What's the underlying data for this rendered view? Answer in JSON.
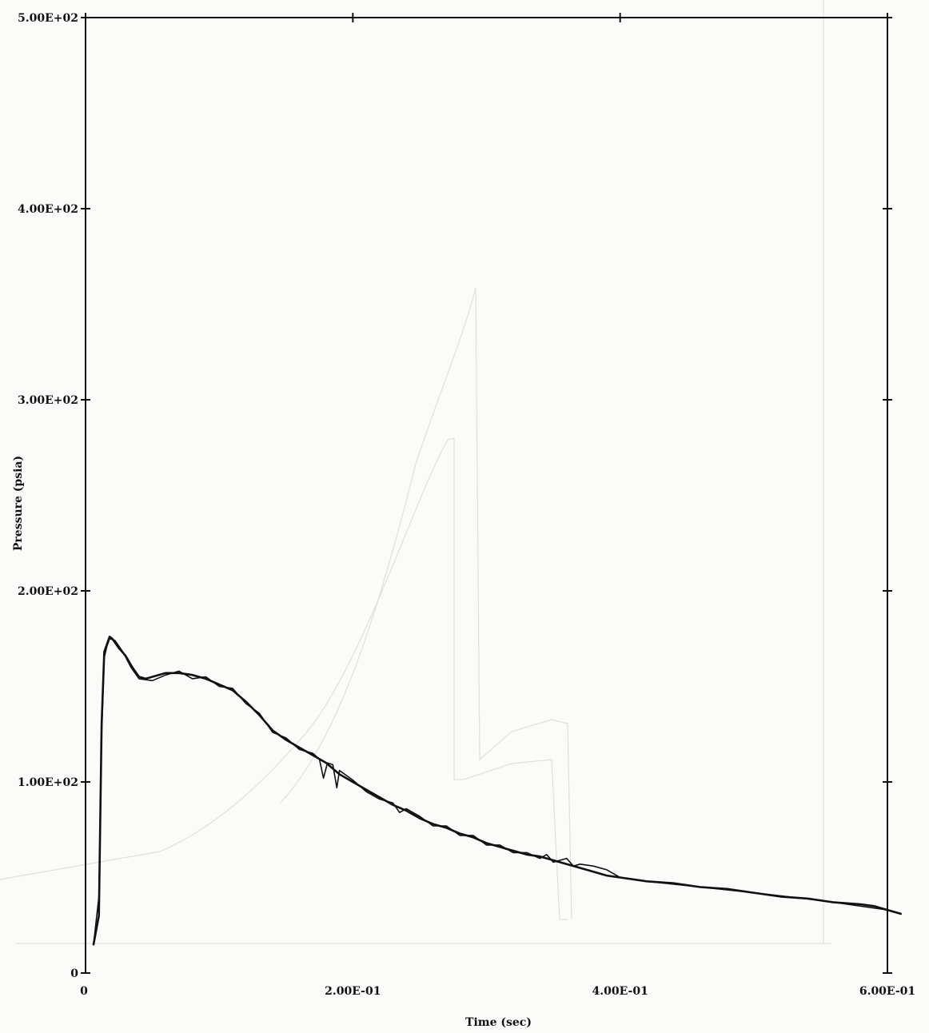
{
  "chart_data": {
    "type": "line",
    "title": "",
    "xlabel": "Time (sec)",
    "ylabel": "Pressure (psia)",
    "xlim": [
      0,
      0.6
    ],
    "ylim": [
      0,
      500
    ],
    "x_ticks": [
      0,
      0.2,
      0.4,
      0.6
    ],
    "x_tick_labels": [
      "0",
      "2.00E-01",
      "4.00E-01",
      "6.00E-01"
    ],
    "y_ticks": [
      0,
      100,
      200,
      300,
      400,
      500
    ],
    "y_tick_labels": [
      "0",
      "1.00E+02",
      "2.00E+02",
      "3.00E+02",
      "4.00E+02",
      "5.00E+02"
    ],
    "grid": false,
    "line_color": "#111111",
    "series": [
      {
        "points": [
          [
            0.006,
            15
          ],
          [
            0.01,
            30
          ],
          [
            0.012,
            130
          ],
          [
            0.014,
            168
          ],
          [
            0.016,
            172
          ],
          [
            0.018,
            176
          ],
          [
            0.02,
            175
          ],
          [
            0.025,
            170
          ],
          [
            0.03,
            166
          ],
          [
            0.035,
            160
          ],
          [
            0.04,
            155
          ],
          [
            0.045,
            154
          ],
          [
            0.05,
            155
          ],
          [
            0.06,
            157
          ],
          [
            0.07,
            157
          ],
          [
            0.08,
            156
          ],
          [
            0.09,
            154
          ],
          [
            0.1,
            151
          ],
          [
            0.11,
            148
          ],
          [
            0.12,
            142
          ],
          [
            0.13,
            135
          ],
          [
            0.14,
            127
          ],
          [
            0.15,
            122
          ],
          [
            0.16,
            118
          ],
          [
            0.17,
            114
          ],
          [
            0.18,
            110
          ],
          [
            0.19,
            104
          ],
          [
            0.2,
            100
          ],
          [
            0.21,
            96
          ],
          [
            0.22,
            92
          ],
          [
            0.23,
            88
          ],
          [
            0.24,
            85
          ],
          [
            0.25,
            81
          ],
          [
            0.26,
            78
          ],
          [
            0.27,
            76
          ],
          [
            0.28,
            73
          ],
          [
            0.29,
            71
          ],
          [
            0.3,
            68
          ],
          [
            0.31,
            66
          ],
          [
            0.32,
            64
          ],
          [
            0.33,
            62
          ],
          [
            0.34,
            61
          ],
          [
            0.35,
            59
          ],
          [
            0.36,
            57
          ],
          [
            0.37,
            55
          ],
          [
            0.38,
            53
          ],
          [
            0.39,
            51
          ],
          [
            0.4,
            50
          ],
          [
            0.42,
            48
          ],
          [
            0.44,
            47
          ],
          [
            0.46,
            45
          ],
          [
            0.48,
            44
          ],
          [
            0.5,
            42
          ],
          [
            0.52,
            40
          ],
          [
            0.54,
            39
          ],
          [
            0.56,
            37
          ],
          [
            0.58,
            36
          ],
          [
            0.59,
            35
          ],
          [
            0.6,
            33
          ],
          [
            0.61,
            31
          ]
        ]
      },
      {
        "points": [
          [
            0.006,
            15
          ],
          [
            0.01,
            40
          ],
          [
            0.012,
            125
          ],
          [
            0.014,
            165
          ],
          [
            0.016,
            171
          ],
          [
            0.018,
            175
          ],
          [
            0.022,
            174
          ],
          [
            0.028,
            168
          ],
          [
            0.034,
            160
          ],
          [
            0.04,
            154
          ],
          [
            0.05,
            153
          ],
          [
            0.06,
            156
          ],
          [
            0.07,
            158
          ],
          [
            0.08,
            154
          ],
          [
            0.09,
            155
          ],
          [
            0.1,
            150
          ],
          [
            0.11,
            149
          ],
          [
            0.12,
            141
          ],
          [
            0.13,
            136
          ],
          [
            0.14,
            126
          ],
          [
            0.15,
            123
          ],
          [
            0.16,
            117
          ],
          [
            0.17,
            115
          ],
          [
            0.175,
            112
          ],
          [
            0.178,
            102
          ],
          [
            0.181,
            110
          ],
          [
            0.185,
            109
          ],
          [
            0.188,
            97
          ],
          [
            0.19,
            106
          ],
          [
            0.2,
            101
          ],
          [
            0.21,
            95
          ],
          [
            0.22,
            91
          ],
          [
            0.23,
            89
          ],
          [
            0.235,
            84
          ],
          [
            0.24,
            86
          ],
          [
            0.25,
            82
          ],
          [
            0.26,
            77
          ],
          [
            0.27,
            77
          ],
          [
            0.28,
            72
          ],
          [
            0.29,
            72
          ],
          [
            0.3,
            67
          ],
          [
            0.31,
            67
          ],
          [
            0.32,
            63
          ],
          [
            0.33,
            63
          ],
          [
            0.34,
            60
          ],
          [
            0.345,
            62
          ],
          [
            0.35,
            58
          ],
          [
            0.36,
            60
          ],
          [
            0.365,
            56
          ],
          [
            0.37,
            57
          ],
          [
            0.38,
            56
          ],
          [
            0.39,
            54
          ],
          [
            0.4,
            50
          ],
          [
            0.42,
            48
          ],
          [
            0.46,
            45
          ],
          [
            0.5,
            42
          ],
          [
            0.55,
            38
          ],
          [
            0.6,
            33
          ],
          [
            0.61,
            31
          ]
        ]
      }
    ]
  }
}
